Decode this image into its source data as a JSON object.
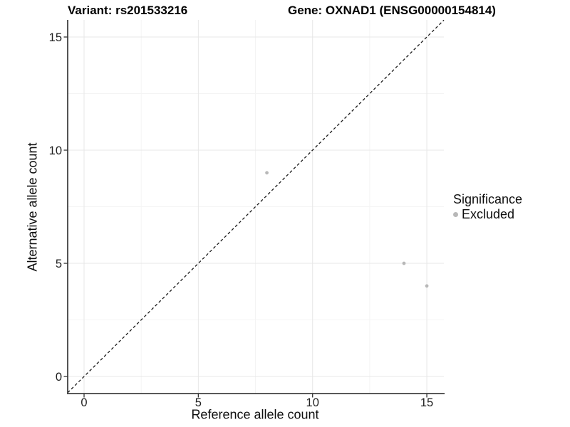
{
  "titles": {
    "variant": "Variant: rs201533216",
    "gene": "Gene: OXNAD1 (ENSG00000154814)"
  },
  "axes": {
    "x": {
      "label": "Reference allele count"
    },
    "y": {
      "label": "Alternative allele count"
    }
  },
  "legend": {
    "title": "Significance",
    "items": [
      {
        "label": "Excluded",
        "color": "#b8b8b8"
      }
    ]
  },
  "chart_data": {
    "type": "scatter",
    "title": "Variant: rs201533216 | Gene: OXNAD1 (ENSG00000154814)",
    "xlabel": "Reference allele count",
    "ylabel": "Alternative allele count",
    "xlim": [
      -0.75,
      15.75
    ],
    "ylim": [
      -0.75,
      15.75
    ],
    "x_ticks": [
      0,
      5,
      10,
      15
    ],
    "y_ticks": [
      0,
      5,
      10,
      15
    ],
    "minor_ticks": [
      2.5,
      7.5,
      12.5
    ],
    "grid": true,
    "legend_position": "right",
    "series": [
      {
        "name": "Excluded",
        "color": "#b8b8b8",
        "points": [
          {
            "x": 8,
            "y": 9
          },
          {
            "x": 14,
            "y": 5
          },
          {
            "x": 15,
            "y": 4
          }
        ]
      }
    ],
    "reference_line": {
      "type": "identity",
      "slope": 1,
      "intercept": 0,
      "style": "dashed",
      "color": "#1a1a1a"
    },
    "style": {
      "grid_major_color": "#e7e7e7",
      "grid_minor_color": "#f4f4f4",
      "axis_line_color": "#404040",
      "tick_label_color": "#212121",
      "point_radius": 2.4
    }
  }
}
